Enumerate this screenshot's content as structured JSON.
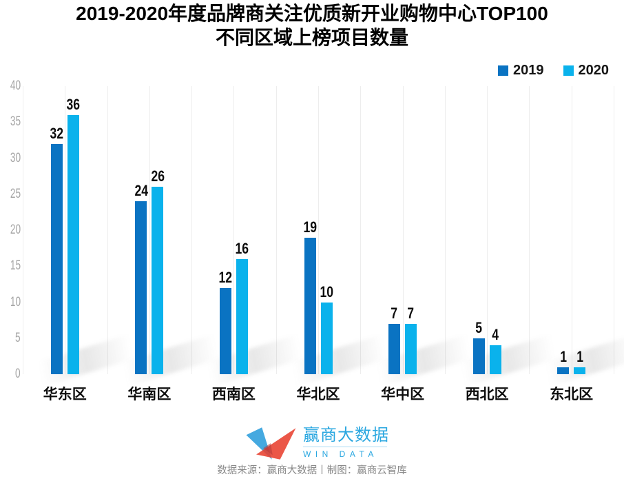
{
  "title": {
    "line1": "2019-2020年度品牌商关注优质新开业购物中心TOP100",
    "line2": "不同区域上榜项目数量"
  },
  "chart_data": {
    "type": "bar",
    "title": "2019-2020年度品牌商关注优质新开业购物中心TOP100 不同区域上榜项目数量",
    "categories": [
      "华东区",
      "华南区",
      "西南区",
      "华北区",
      "华中区",
      "西北区",
      "东北区"
    ],
    "series": [
      {
        "name": "2019",
        "color": "#0a73c2",
        "values": [
          32,
          24,
          12,
          19,
          7,
          5,
          1
        ]
      },
      {
        "name": "2020",
        "color": "#0ab2ec",
        "values": [
          36,
          26,
          16,
          10,
          7,
          4,
          1
        ]
      }
    ],
    "xlabel": "",
    "ylabel": "",
    "ylim": [
      0,
      40
    ],
    "yticks": [
      0,
      5,
      10,
      15,
      20,
      25,
      30,
      35,
      40
    ],
    "grid": "vertical-only",
    "legend_position": "top-right",
    "value_labels": "above-bars"
  },
  "footer": {
    "logo_name": "赢商大数据",
    "logo_sub": "WIN DATA",
    "caption": "数据来源：赢商大数据丨制图：赢商云智库"
  },
  "colors": {
    "bar_2019": "#0a73c2",
    "bar_2020": "#0ab2ec",
    "gridline": "#ededed",
    "tick_label": "#a6a6a6",
    "text": "#0d0d0d",
    "caption_gray": "#8a8a8a",
    "logo_text_blue": "#2aa7e0",
    "logo_shape_blue": "#3ba4de",
    "logo_shape_red": "#e8402f"
  }
}
